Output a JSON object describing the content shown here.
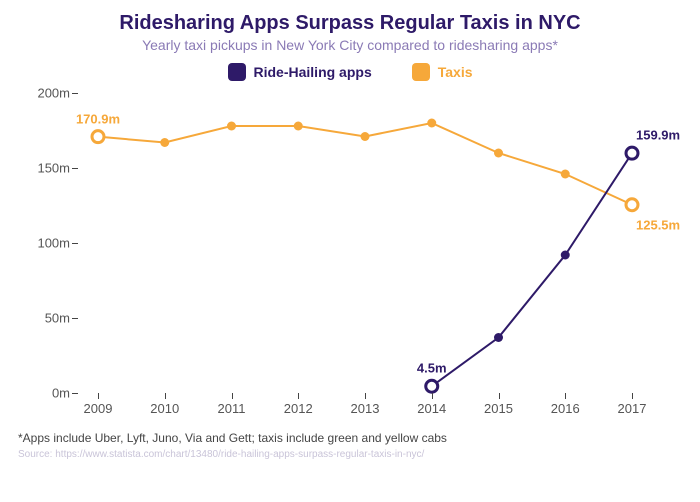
{
  "title": "Ridesharing Apps Surpass Regular Taxis in NYC",
  "subtitle": "Yearly taxi pickups in New York City compared to ridesharing apps*",
  "footnote": "*Apps include Uber, Lyft, Juno, Via and Gett; taxis include green and yellow cabs",
  "source": "Source: https://www.statista.com/chart/13480/ride-hailing-apps-surpass-regular-taxis-in-nyc/",
  "colors": {
    "title": "#2e1a68",
    "subtitle": "#8a7ab5",
    "ridehailing": "#2e1a68",
    "taxis": "#f6a83a",
    "axis_text": "#555555",
    "footnote": "#444444",
    "source": "#c9c4d8",
    "background": "#ffffff"
  },
  "typography": {
    "title_fontsize": 20,
    "subtitle_fontsize": 14,
    "legend_fontsize": 14,
    "axis_fontsize": 13,
    "datalabel_fontsize": 13
  },
  "legend": {
    "items": [
      {
        "label": "Ride-Hailing apps",
        "color_key": "ridehailing"
      },
      {
        "label": "Taxis",
        "color_key": "taxis"
      }
    ]
  },
  "chart": {
    "type": "line",
    "xlabels": [
      "2009",
      "2010",
      "2011",
      "2012",
      "2013",
      "2014",
      "2015",
      "2016",
      "2017"
    ],
    "ylim": [
      0,
      200
    ],
    "ytick_step": 50,
    "ytick_suffix": "m",
    "line_width": 2,
    "marker_radius": 4.5,
    "open_marker_radius": 6,
    "open_marker_stroke": 3,
    "series": {
      "taxis": {
        "color_key": "taxis",
        "values": [
          170.9,
          167,
          178,
          178,
          171,
          180,
          160,
          146,
          125.5
        ],
        "open_first": true,
        "open_last": true,
        "labels": [
          {
            "index": 0,
            "text": "170.9m",
            "dy": -18,
            "dx": 0,
            "anchor": "middle"
          },
          {
            "index": 8,
            "text": "125.5m",
            "dy": 20,
            "dx": 4,
            "anchor": "start"
          }
        ]
      },
      "ridehailing": {
        "color_key": "ridehailing",
        "start_index": 5,
        "values": [
          4.5,
          37,
          92,
          159.9
        ],
        "open_first": true,
        "open_last": true,
        "labels": [
          {
            "index": 0,
            "text": "4.5m",
            "dy": -18,
            "dx": 0,
            "anchor": "middle"
          },
          {
            "index": 3,
            "text": "159.9m",
            "dy": -18,
            "dx": 4,
            "anchor": "start"
          }
        ]
      }
    }
  }
}
